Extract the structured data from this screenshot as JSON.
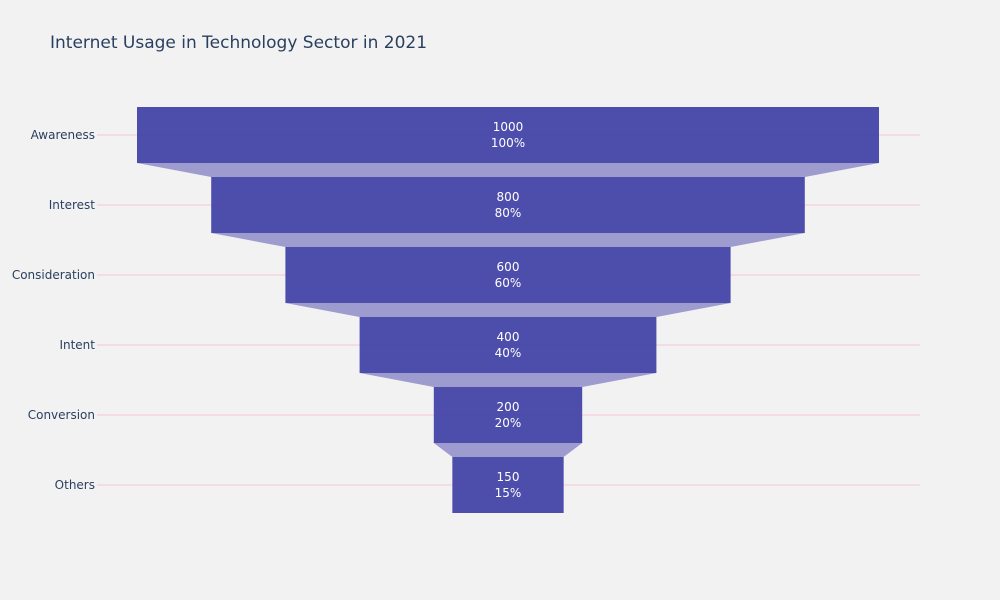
{
  "chart_data": {
    "type": "funnel",
    "title": "Internet Usage in Technology Sector in 2021",
    "stages": [
      "Awareness",
      "Interest",
      "Consideration",
      "Intent",
      "Conversion",
      "Others"
    ],
    "values": [
      1000,
      800,
      600,
      400,
      200,
      150
    ],
    "percent_labels": [
      "100%",
      "80%",
      "60%",
      "40%",
      "20%",
      "15%"
    ],
    "colors": {
      "bar": "#3f3fa6",
      "connector": "#9e9ccf",
      "gridline": "#f5c6d6",
      "background": "#f2f2f3",
      "text": "#2a3f5f"
    }
  }
}
